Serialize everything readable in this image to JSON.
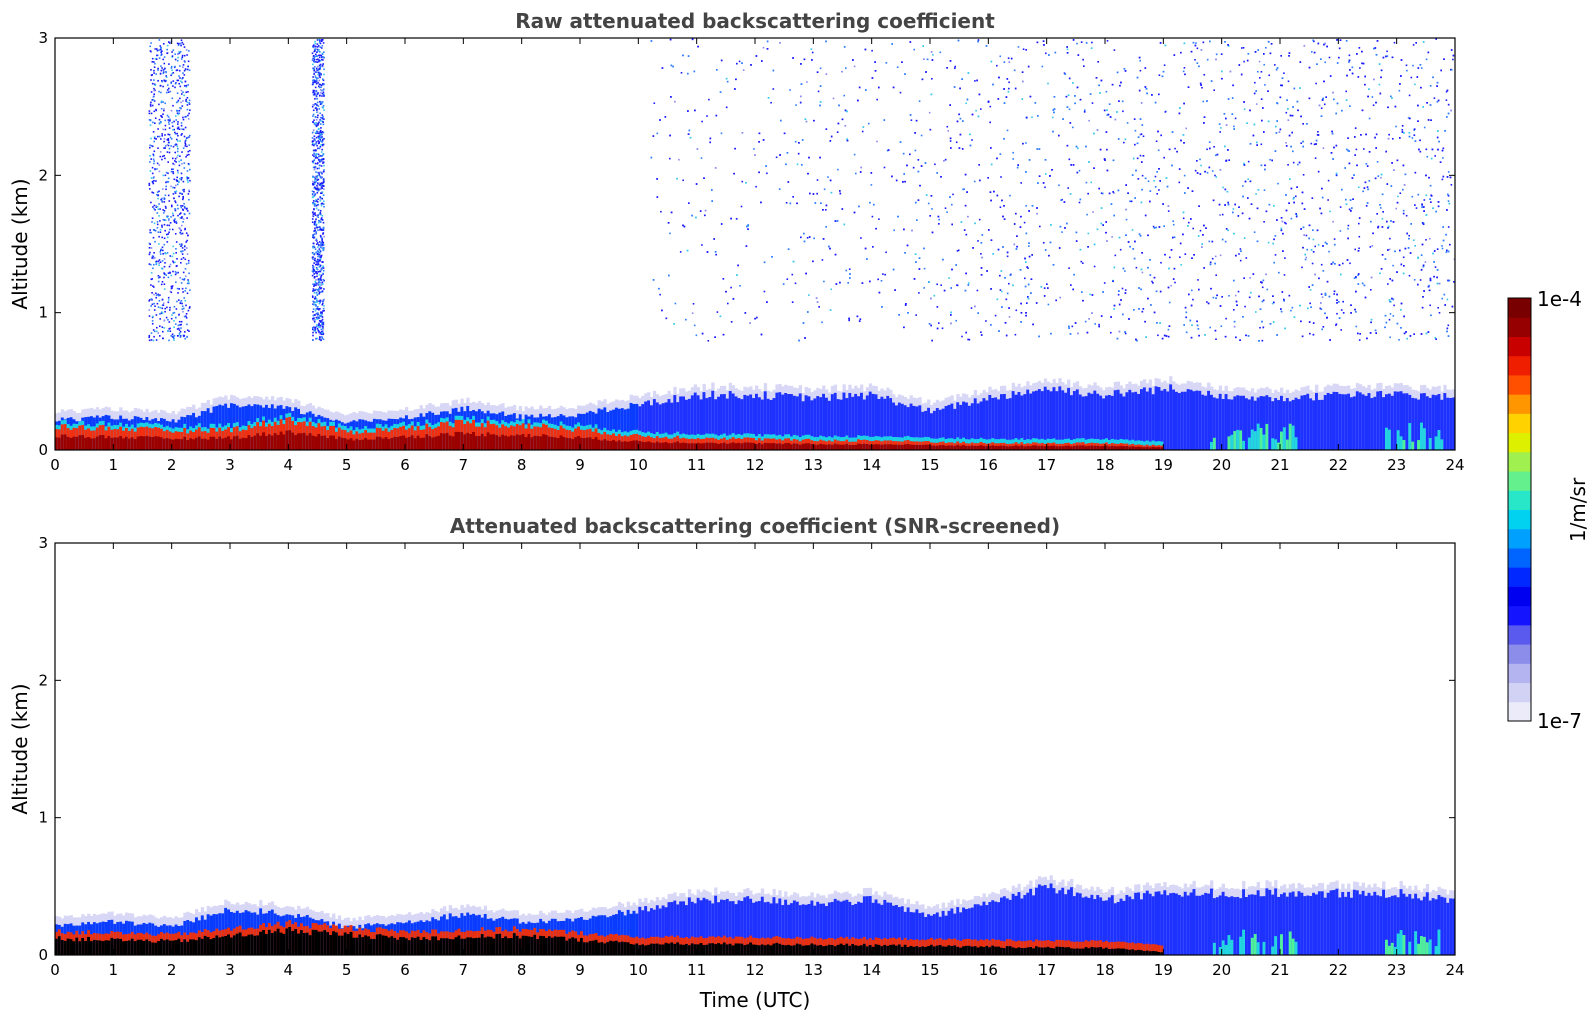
{
  "chart_data": [
    {
      "type": "heatmap",
      "title": "Raw attenuated backscattering coefficient",
      "xlabel": "",
      "ylabel": "Altitude (km)",
      "xlim": [
        0,
        24
      ],
      "ylim": [
        0,
        3
      ],
      "xticks": [
        "0",
        "1",
        "2",
        "3",
        "4",
        "5",
        "6",
        "7",
        "8",
        "9",
        "10",
        "11",
        "12",
        "13",
        "14",
        "15",
        "16",
        "17",
        "18",
        "19",
        "20",
        "21",
        "22",
        "23",
        "24"
      ],
      "yticks": [
        "0",
        "1",
        "2",
        "3"
      ],
      "layers": [
        {
          "name": "surface layer",
          "t": [
            0,
            1,
            2,
            3,
            4,
            5,
            6,
            7,
            8,
            9,
            10,
            11,
            12,
            13,
            14,
            15,
            16,
            17,
            18,
            19,
            20,
            21,
            22,
            23,
            24
          ],
          "top_km": [
            0.22,
            0.24,
            0.21,
            0.33,
            0.3,
            0.2,
            0.24,
            0.3,
            0.24,
            0.26,
            0.33,
            0.4,
            0.4,
            0.38,
            0.4,
            0.28,
            0.38,
            0.45,
            0.4,
            0.45,
            0.4,
            0.38,
            0.4,
            0.4,
            0.38
          ]
        },
        {
          "name": "strong layer",
          "t": [
            0,
            1,
            2,
            3,
            4,
            5,
            6,
            7,
            8,
            9,
            10,
            11,
            12,
            13,
            14,
            15,
            16,
            17,
            18,
            19
          ],
          "top_km": [
            0.17,
            0.16,
            0.14,
            0.15,
            0.22,
            0.13,
            0.16,
            0.2,
            0.18,
            0.15,
            0.1,
            0.09,
            0.08,
            0.07,
            0.07,
            0.06,
            0.05,
            0.05,
            0.05,
            0.03
          ]
        }
      ],
      "scatter_regions": [
        {
          "t": [
            1.6,
            2.3
          ],
          "alt_km": [
            0.8,
            3.0
          ]
        },
        {
          "t": [
            4.4,
            4.6
          ],
          "alt_km": [
            0.8,
            3.0
          ]
        },
        {
          "t": [
            10.2,
            24
          ],
          "alt_km": [
            0.8,
            3.0
          ]
        }
      ],
      "grid": false
    },
    {
      "type": "heatmap",
      "title": "Attenuated backscattering coefficient (SNR-screened)",
      "xlabel": "Time (UTC)",
      "ylabel": "Altitude (km)",
      "xlim": [
        0,
        24
      ],
      "ylim": [
        0,
        3
      ],
      "xticks": [
        "0",
        "1",
        "2",
        "3",
        "4",
        "5",
        "6",
        "7",
        "8",
        "9",
        "10",
        "11",
        "12",
        "13",
        "14",
        "15",
        "16",
        "17",
        "18",
        "19",
        "20",
        "21",
        "22",
        "23",
        "24"
      ],
      "yticks": [
        "0",
        "1",
        "2",
        "3"
      ],
      "layers": [
        {
          "name": "surface layer",
          "t": [
            0,
            1,
            2,
            3,
            4,
            5,
            6,
            7,
            8,
            9,
            10,
            11,
            12,
            13,
            14,
            15,
            16,
            17,
            18,
            19,
            20,
            21,
            22,
            23,
            24
          ],
          "top_km": [
            0.22,
            0.24,
            0.21,
            0.33,
            0.3,
            0.2,
            0.24,
            0.3,
            0.24,
            0.26,
            0.33,
            0.4,
            0.4,
            0.38,
            0.4,
            0.28,
            0.38,
            0.5,
            0.4,
            0.45,
            0.45,
            0.45,
            0.45,
            0.45,
            0.4
          ]
        },
        {
          "name": "screened (black)",
          "t": [
            0,
            2,
            4,
            6,
            8,
            10,
            12,
            14,
            16,
            18,
            19
          ],
          "top_km": [
            0.12,
            0.1,
            0.18,
            0.12,
            0.14,
            0.08,
            0.08,
            0.07,
            0.06,
            0.05,
            0.02
          ]
        }
      ],
      "grid": false
    }
  ],
  "colorbar": {
    "top_label": "1e-4",
    "bottom_label": "1e-7",
    "unit": "1/m/sr",
    "colors": [
      "#ebebfa",
      "#d2d2f5",
      "#b4b4f0",
      "#8c8ceb",
      "#5a5aef",
      "#1414ff",
      "#0000f0",
      "#0028ff",
      "#0064ff",
      "#00a0ff",
      "#00d2f0",
      "#28e6c8",
      "#64f08c",
      "#a0f050",
      "#dcf000",
      "#ffd200",
      "#ff9600",
      "#ff5000",
      "#f01e00",
      "#c80000",
      "#960000",
      "#780000"
    ]
  },
  "colors": {
    "title": "#444444",
    "screened": "#000000"
  }
}
